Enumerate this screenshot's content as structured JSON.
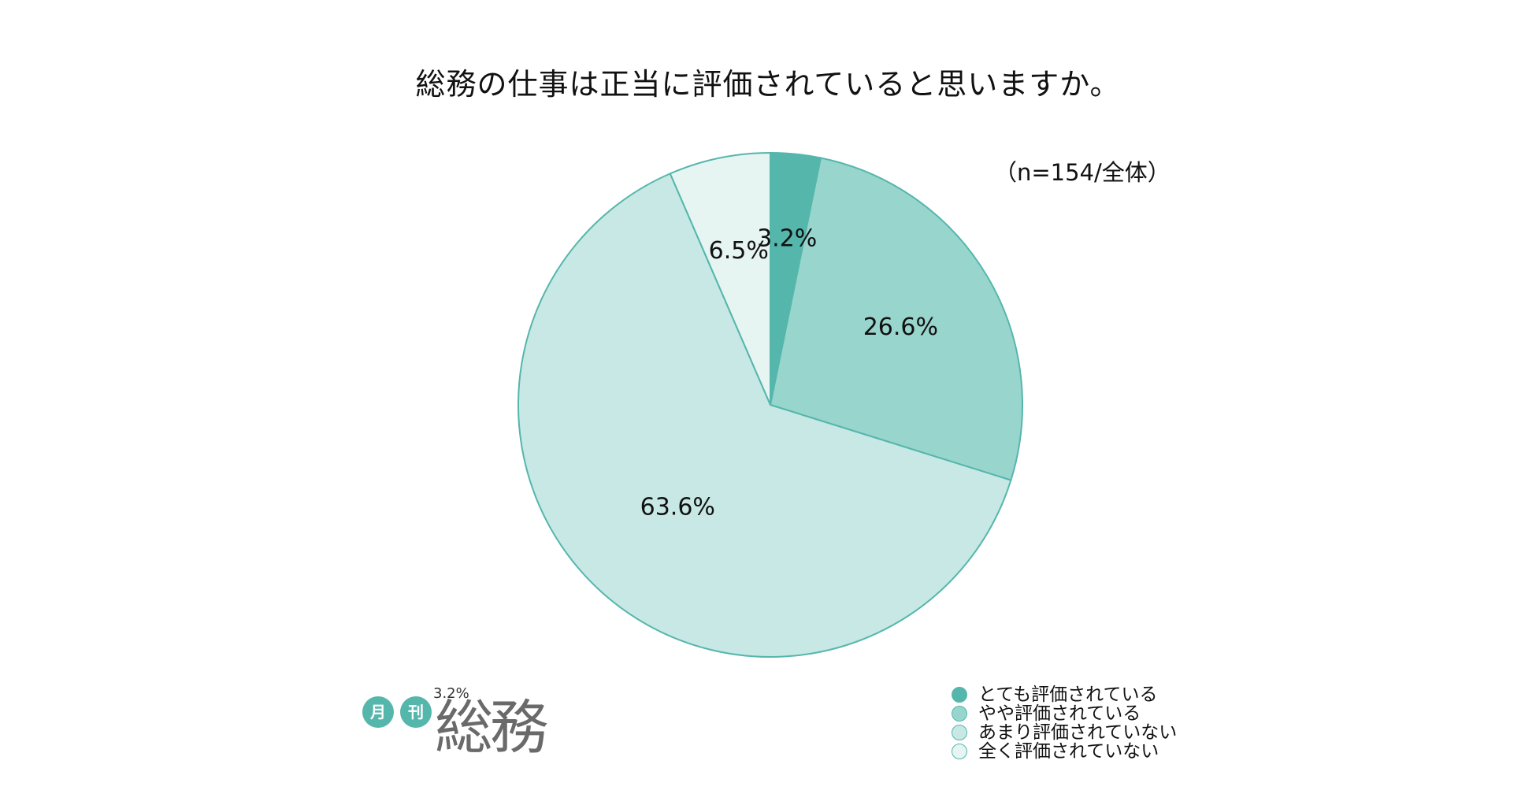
{
  "title": "総務の仕事は正当に評価されていると思いますか。",
  "sample_note": "（n=154/全体）",
  "chart_data": {
    "type": "pie",
    "title": "総務の仕事は正当に評価されていると思いますか。",
    "categories": [
      "とても評価されている",
      "やや評価されている",
      "あまり評価されていない",
      "全く評価されていない"
    ],
    "values": [
      3.2,
      26.6,
      63.6,
      6.5
    ],
    "labels": [
      "3.2%",
      "26.6%",
      "63.6%",
      "6.5%"
    ],
    "colors": [
      "#55b6ac",
      "#98d5cd",
      "#c7e8e4",
      "#e6f4f2"
    ],
    "edge_color": "#55b6ac",
    "start": "12 o'clock, clockwise",
    "legend_position": "bottom-right"
  },
  "legend": {
    "items": [
      {
        "label": "とても評価されている",
        "color": "#55b6ac"
      },
      {
        "label": "やや評価されている",
        "color": "#98d5cd"
      },
      {
        "label": "あまり評価されていない",
        "color": "#c7e8e4"
      },
      {
        "label": "全く評価されていない",
        "color": "#e6f4f2"
      }
    ]
  },
  "logo": {
    "badge1": "月",
    "badge2": "刊",
    "text": "総務",
    "small_text": "3.2%",
    "color": "#55b6ac"
  }
}
